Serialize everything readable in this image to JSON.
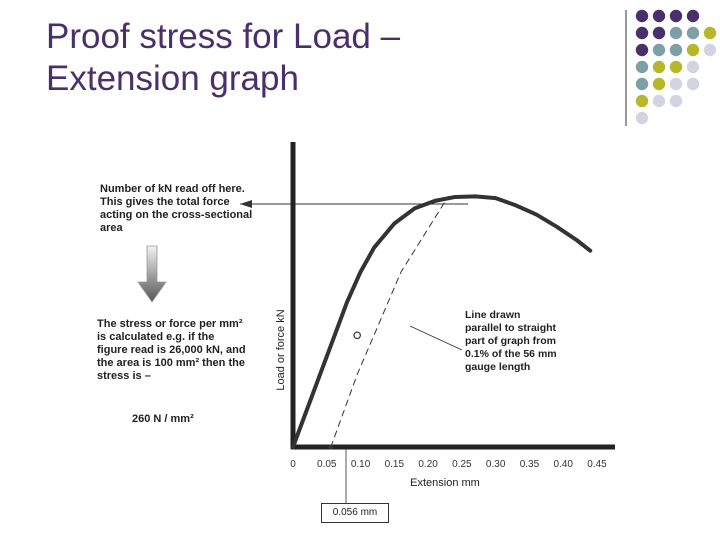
{
  "slide": {
    "title_line1": "Proof stress for Load –",
    "title_line2": "Extension graph"
  },
  "theme": {
    "title_color": "#4b2f6b",
    "dot_colors": {
      "purple": "#4b2f6b",
      "teal": "#7f9fa6",
      "olive": "#b7b829",
      "gray": "#d3d3e2"
    }
  },
  "annotations": {
    "read_off": "Number of kN read off here. This gives the total force acting on the cross-sectional area",
    "stress_calc": "The stress or force per mm² is calculated e.g. if the figure read is 26,000 kN, and the area is 100 mm² then the stress is –",
    "stress_result": "260 N / mm²",
    "parallel_line": "Line drawn parallel to straight part of graph from 0.1% of the 56 mm gauge length",
    "offset_value": "0.056 mm"
  },
  "chart_data": {
    "type": "line",
    "xlabel": "Extension mm",
    "ylabel": "Load or force kN",
    "xlim": [
      0,
      0.45
    ],
    "x_ticks": [
      "0",
      "0.05",
      "0.10",
      "0.15",
      "0.20",
      "0.25",
      "0.30",
      "0.35",
      "0.40",
      "0.45"
    ],
    "y_ticks": [],
    "grid": false,
    "legend": "none",
    "series": [
      {
        "x": [
          0,
          0.02,
          0.05,
          0.08,
          0.1,
          0.12,
          0.15,
          0.18,
          0.21,
          0.24,
          0.27,
          0.3,
          0.33,
          0.36,
          0.39,
          0.42,
          0.44
        ],
        "y": [
          0,
          12,
          30,
          48,
          58,
          66,
          74,
          79,
          81.5,
          82.8,
          83,
          82.4,
          80,
          77,
          73,
          68.5,
          65
        ]
      },
      {
        "x": [
          0.056,
          0.095,
          0.16,
          0.23
        ],
        "y": [
          0,
          24,
          58,
          83
        ]
      }
    ],
    "markers": [
      {
        "x": 0.056,
        "y": 0,
        "shape": "dot"
      },
      {
        "x": 0.095,
        "y": 37,
        "shape": "ring"
      }
    ]
  }
}
